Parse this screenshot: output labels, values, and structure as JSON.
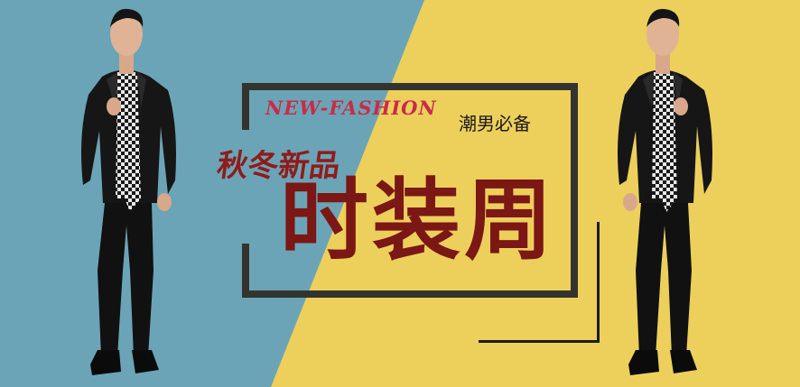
{
  "banner": {
    "title_en": "NEW-FASHION",
    "tagline": "潮男必备",
    "subtitle": "秋冬新品",
    "headline": "时装周"
  },
  "images": {
    "left_model": "man in black leather jacket, checkered scarf and black jeans",
    "right_model": "man in black leather jacket, checkered scarf and black jeans"
  },
  "colors": {
    "bg_blue": "#6ba4b7",
    "bg_yellow": "#edcf5c",
    "frame": "#34342f",
    "title_en": "#c82c48",
    "subtitle": "#8e1c1b",
    "headline": "#7b1714",
    "tagline": "#1a1a1a"
  }
}
